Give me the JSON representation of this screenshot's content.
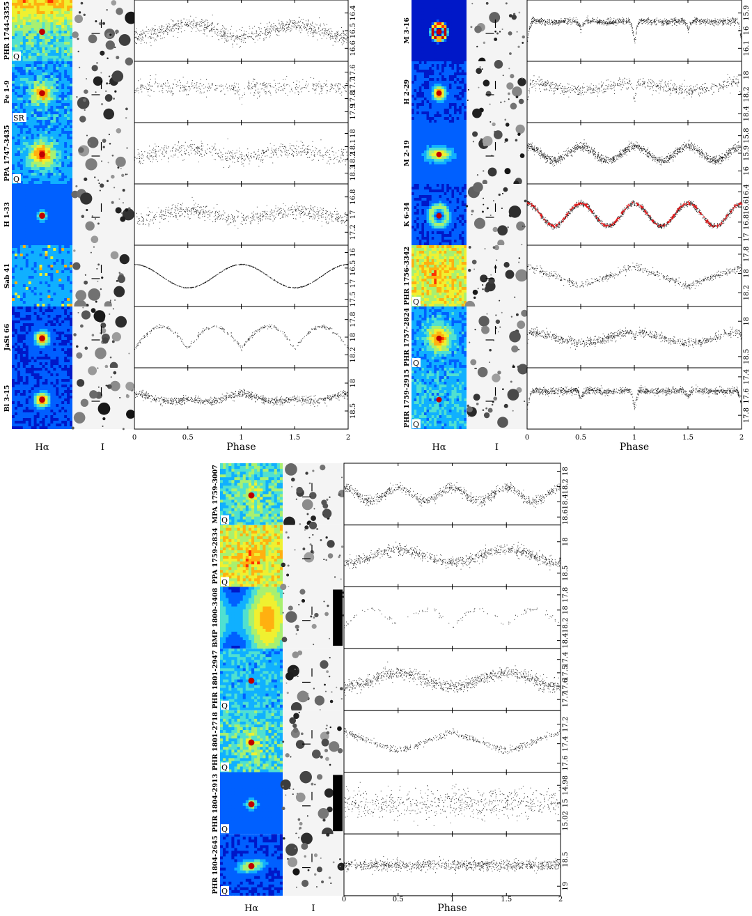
{
  "figure": {
    "column_labels": {
      "halpha": "Hα",
      "ilabel": "I",
      "phase": "Phase"
    },
    "x_ticks": [
      "0",
      "0.5",
      "1",
      "1.5",
      "2"
    ]
  },
  "chart_data": [
    {
      "type": "scatter",
      "panel": "top-left",
      "xlabel": "Phase",
      "xlim": [
        0,
        2
      ],
      "objects": [
        {
          "name": "PHR 1744-3355",
          "badge": "Q",
          "yticks": [
            "16.4",
            "16.5",
            "16.6"
          ],
          "ylim": [
            16.35,
            16.65
          ],
          "shape": "sine1",
          "amp": 0.07,
          "noise": 0.035,
          "n": 900,
          "nebula": "diffuse-top"
        },
        {
          "name": "Pe 1-9",
          "badge": "SR",
          "yticks": [
            "17.6",
            "17.7",
            "17.8",
            "17.9"
          ],
          "ylim": [
            17.55,
            17.95
          ],
          "shape": "flat-dip",
          "amp": 0.12,
          "noise": 0.05,
          "n": 500,
          "nebula": "multi"
        },
        {
          "name": "PPA 1747-3435",
          "badge": "Q",
          "yticks": [
            "18",
            "18.1",
            "18.2",
            "18.3"
          ],
          "ylim": [
            17.95,
            18.35
          ],
          "shape": "sine1",
          "amp": 0.06,
          "noise": 0.05,
          "n": 600,
          "nebula": "blob"
        },
        {
          "name": "H 1-33",
          "badge": "",
          "yticks": [
            "16.8",
            "17",
            "17.2"
          ],
          "ylim": [
            16.7,
            17.3
          ],
          "shape": "sine1",
          "amp": 0.1,
          "noise": 0.07,
          "n": 700,
          "nebula": "compact"
        },
        {
          "name": "Sab 41",
          "badge": "",
          "yticks": [
            "16",
            "16.5",
            "17",
            "17.5"
          ],
          "ylim": [
            15.9,
            17.6
          ],
          "shape": "sine1-strong",
          "amp": 0.75,
          "noise": 0.01,
          "n": 700,
          "nebula": "starfield"
        },
        {
          "name": "JaSt 66",
          "badge": "",
          "yticks": [
            "17.8",
            "18",
            "18.2"
          ],
          "ylim": [
            17.7,
            18.3
          ],
          "shape": "ellip-deep",
          "amp": 0.25,
          "noise": 0.02,
          "n": 400,
          "nebula": "compact-bright"
        },
        {
          "name": "Bl 3-15",
          "badge": "",
          "yticks": [
            "18",
            "18.5"
          ],
          "ylim": [
            17.8,
            18.75
          ],
          "shape": "double",
          "amp": 0.18,
          "noise": 0.06,
          "n": 1000,
          "nebula": "compact-bright"
        }
      ]
    },
    {
      "type": "scatter",
      "panel": "top-right",
      "xlabel": "Phase",
      "xlim": [
        0,
        2
      ],
      "objects": [
        {
          "name": "M 3-16",
          "badge": "",
          "yticks": [
            "15.9",
            "16",
            "16.1"
          ],
          "ylim": [
            15.85,
            16.15
          ],
          "shape": "eclipse",
          "amp": 0.12,
          "noise": 0.015,
          "n": 1200,
          "nebula": "ring"
        },
        {
          "name": "H 2-29",
          "badge": "",
          "yticks": [
            "18",
            "18.2",
            "18.4"
          ],
          "ylim": [
            17.9,
            18.45
          ],
          "shape": "eclipse-sine",
          "amp": 0.2,
          "noise": 0.05,
          "n": 700,
          "nebula": "compact-bright"
        },
        {
          "name": "M 2-19",
          "badge": "",
          "yticks": [
            "15.8",
            "15.9",
            "16"
          ],
          "ylim": [
            15.75,
            16.05
          ],
          "shape": "ellip",
          "amp": 0.08,
          "noise": 0.02,
          "n": 1400,
          "nebula": "bipolar"
        },
        {
          "name": "K 6-34",
          "badge": "",
          "yticks": [
            "16.4",
            "16.6",
            "16.8",
            "17"
          ],
          "ylim": [
            16.35,
            17.05
          ],
          "shape": "ellip",
          "amp": 0.3,
          "noise": 0.03,
          "n": 1400,
          "nebula": "shell",
          "overlay_color": "#e31a1c"
        },
        {
          "name": "PHR 1756-3342",
          "badge": "Q",
          "yticks": [
            "17.8",
            "18",
            "18.2"
          ],
          "ylim": [
            17.75,
            18.3
          ],
          "shape": "triangle",
          "amp": 0.2,
          "noise": 0.03,
          "n": 600,
          "nebula": "diffuse-bright"
        },
        {
          "name": "PHR 1757-2824",
          "badge": "Q",
          "yticks": [
            "18",
            "18.5"
          ],
          "ylim": [
            17.85,
            18.6
          ],
          "shape": "sine1-dip",
          "amp": 0.15,
          "noise": 0.05,
          "n": 900,
          "nebula": "blob"
        },
        {
          "name": "PHR 1759-2915",
          "badge": "Q",
          "yticks": [
            "17.4",
            "17.6",
            "17.8"
          ],
          "ylim": [
            17.35,
            17.9
          ],
          "shape": "eclipse",
          "amp": 0.18,
          "noise": 0.03,
          "n": 1200,
          "nebula": "faint"
        }
      ]
    },
    {
      "type": "scatter",
      "panel": "bottom",
      "xlabel": "Phase",
      "xlim": [
        0,
        2
      ],
      "objects": [
        {
          "name": "MPA 1759-3007",
          "badge": "Q",
          "yticks": [
            "18",
            "18.2",
            "18.4",
            "18.6"
          ],
          "ylim": [
            17.95,
            18.65
          ],
          "shape": "ellip",
          "amp": 0.18,
          "noise": 0.05,
          "n": 900,
          "nebula": "diffuse"
        },
        {
          "name": "PPA 1759-2834",
          "badge": "Q",
          "yticks": [
            "18",
            "18.5"
          ],
          "ylim": [
            17.8,
            18.65
          ],
          "shape": "sine1",
          "amp": 0.2,
          "noise": 0.07,
          "n": 900,
          "nebula": "diffuse-bright"
        },
        {
          "name": "BMP 1800-3408",
          "badge": "",
          "yticks": [
            "17.8",
            "18",
            "18.2",
            "18.4"
          ],
          "ylim": [
            17.75,
            18.45
          ],
          "shape": "ellip-deep",
          "amp": 0.22,
          "noise": 0.03,
          "n": 120,
          "nebula": "smooth",
          "masked_edge": true
        },
        {
          "name": "PHR 1801-2947",
          "badge": "Q",
          "yticks": [
            "17.4",
            "17.5",
            "17.6",
            "17.7"
          ],
          "ylim": [
            17.35,
            17.75
          ],
          "shape": "sine1",
          "amp": 0.1,
          "noise": 0.04,
          "n": 1000,
          "nebula": "faint"
        },
        {
          "name": "PHR 1801-2718",
          "badge": "Q",
          "yticks": [
            "17.2",
            "17.4",
            "17.6"
          ],
          "ylim": [
            17.1,
            17.65
          ],
          "shape": "triangle",
          "amp": 0.2,
          "noise": 0.03,
          "n": 500,
          "nebula": "diffuse"
        },
        {
          "name": "PHR 1804-2913",
          "badge": "Q",
          "yticks": [
            "14.98",
            "15",
            "15.02"
          ],
          "ylim": [
            14.97,
            15.03
          ],
          "shape": "flat",
          "amp": 0.0,
          "noise": 0.014,
          "n": 700,
          "nebula": "compact",
          "masked_edge": true
        },
        {
          "name": "PHR 1804-2645",
          "badge": "Q",
          "yticks": [
            "18.5",
            "19"
          ],
          "ylim": [
            18.1,
            19.1
          ],
          "shape": "flat",
          "amp": 0.02,
          "noise": 0.08,
          "n": 1000,
          "nebula": "bar"
        }
      ]
    }
  ]
}
